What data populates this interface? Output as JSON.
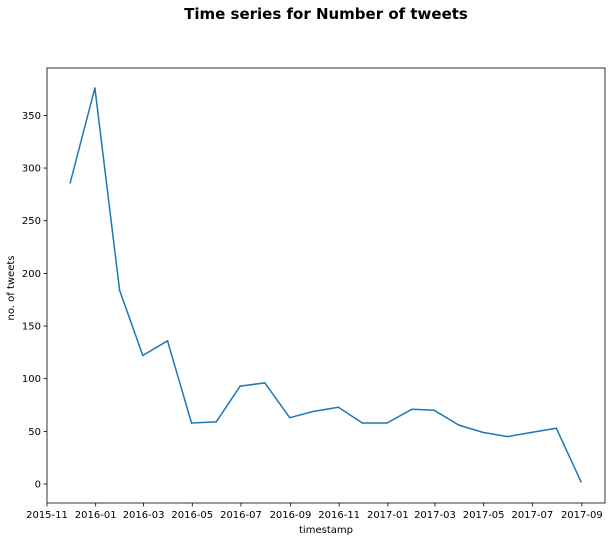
{
  "chart_data": {
    "type": "line",
    "title": "Time series for Number of tweets",
    "xlabel": "timestamp",
    "ylabel": "no. of tweets",
    "x_ticks": [
      "2015-11",
      "2016-01",
      "2016-03",
      "2016-05",
      "2016-07",
      "2016-09",
      "2016-11",
      "2017-01",
      "2017-03",
      "2017-05",
      "2017-07",
      "2017-09"
    ],
    "y_ticks": [
      0,
      50,
      100,
      150,
      200,
      250,
      300,
      350
    ],
    "xlim": [
      "2015-11-01",
      "2017-09-30"
    ],
    "ylim": [
      -18,
      395
    ],
    "grid": false,
    "line_color": "#1f77b4",
    "series": [
      {
        "x": [
          "2015-11-30",
          "2015-12-31",
          "2016-01-31",
          "2016-02-29",
          "2016-03-31",
          "2016-04-30",
          "2016-05-31",
          "2016-06-30",
          "2016-07-31",
          "2016-08-31",
          "2016-09-30",
          "2016-10-31",
          "2016-11-30",
          "2016-12-31",
          "2017-01-31",
          "2017-02-28",
          "2017-03-31",
          "2017-04-30",
          "2017-05-31",
          "2017-06-30",
          "2017-07-31",
          "2017-08-31"
        ],
        "y": [
          286,
          376,
          184,
          122,
          136,
          58,
          59,
          93,
          96,
          63,
          69,
          73,
          58,
          58,
          71,
          70,
          56,
          49,
          45,
          49,
          53,
          2
        ]
      }
    ]
  }
}
